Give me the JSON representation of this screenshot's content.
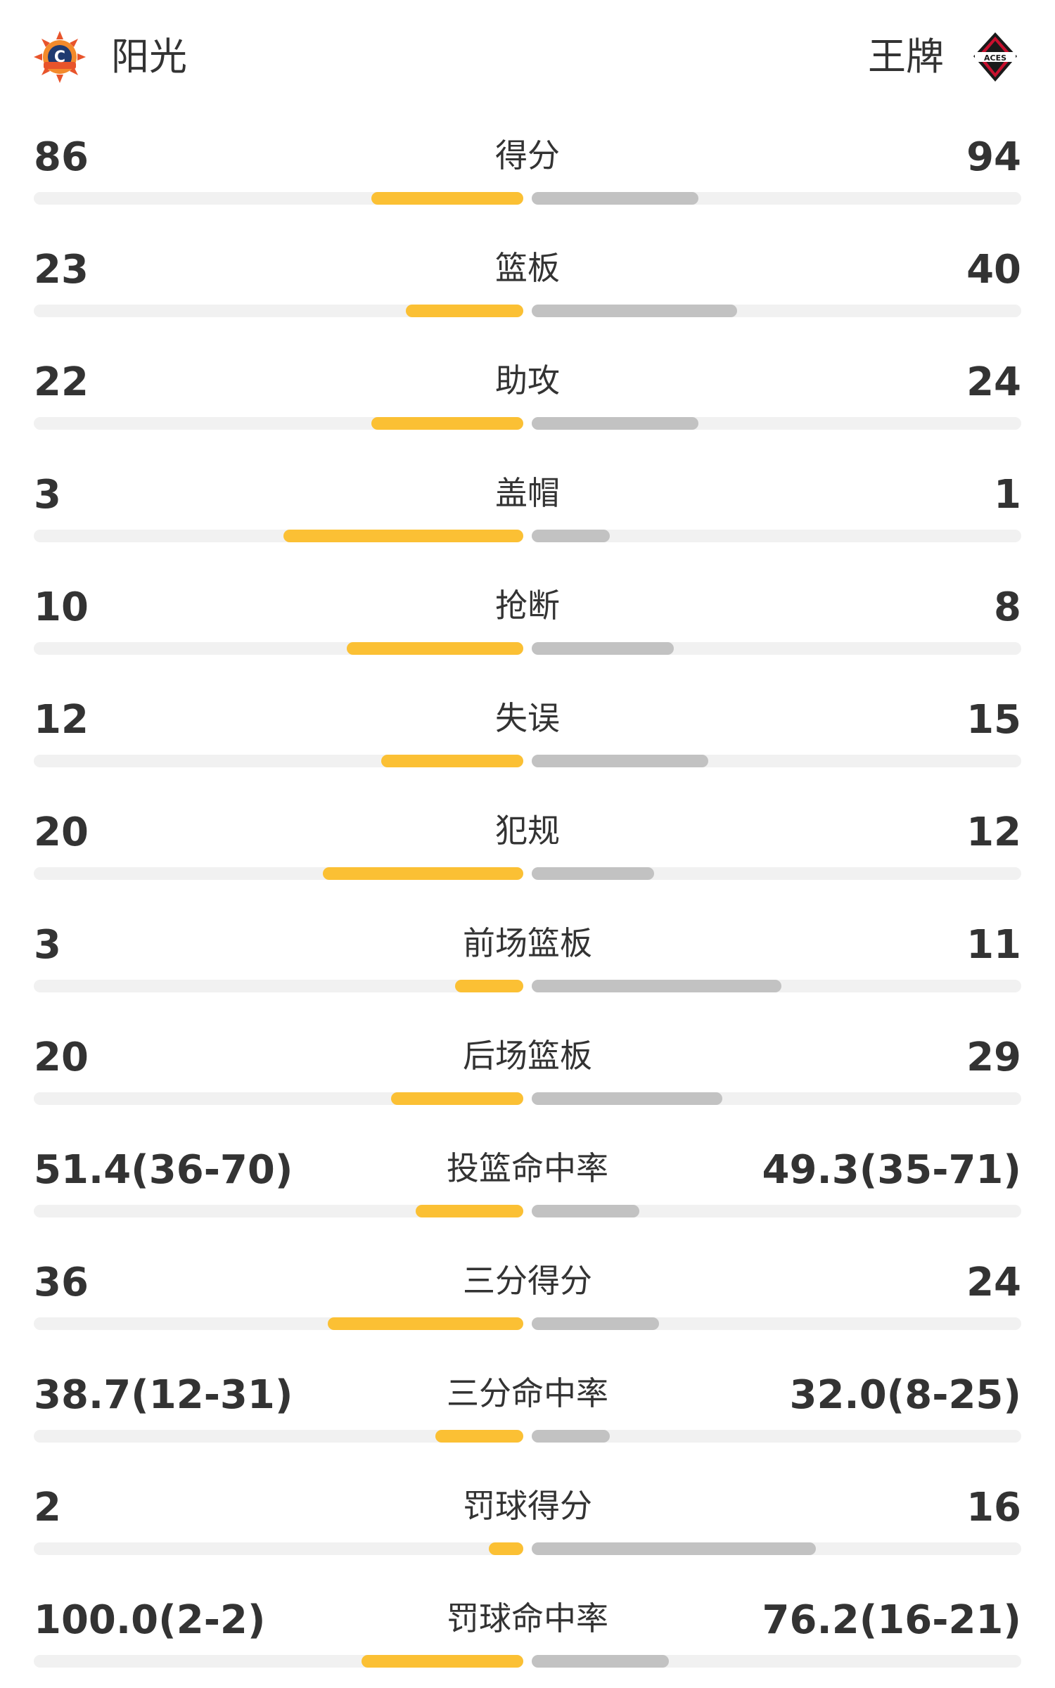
{
  "header": {
    "home_team": "阳光",
    "away_team": "王牌",
    "home_logo_icon": "connecticut-sun-logo-icon",
    "away_logo_icon": "las-vegas-aces-logo-icon",
    "home_logo_text": "C",
    "away_logo_text": "ACES"
  },
  "colors": {
    "home_bar": "#fbc034",
    "away_bar": "#c2c2c2",
    "track": "#f1f1f1"
  },
  "stats": [
    {
      "label": "得分",
      "home": "86",
      "away": "94",
      "home_fill": 0.31,
      "away_fill": 0.34
    },
    {
      "label": "篮板",
      "home": "23",
      "away": "40",
      "home_fill": 0.24,
      "away_fill": 0.42
    },
    {
      "label": "助攻",
      "home": "22",
      "away": "24",
      "home_fill": 0.31,
      "away_fill": 0.34
    },
    {
      "label": "盖帽",
      "home": "3",
      "away": "1",
      "home_fill": 0.49,
      "away_fill": 0.16
    },
    {
      "label": "抢断",
      "home": "10",
      "away": "8",
      "home_fill": 0.36,
      "away_fill": 0.29
    },
    {
      "label": "失误",
      "home": "12",
      "away": "15",
      "home_fill": 0.29,
      "away_fill": 0.36
    },
    {
      "label": "犯规",
      "home": "20",
      "away": "12",
      "home_fill": 0.41,
      "away_fill": 0.25
    },
    {
      "label": "前场篮板",
      "home": "3",
      "away": "11",
      "home_fill": 0.14,
      "away_fill": 0.51
    },
    {
      "label": "后场篮板",
      "home": "20",
      "away": "29",
      "home_fill": 0.27,
      "away_fill": 0.39
    },
    {
      "label": "投篮命中率",
      "home": "51.4(36-70)",
      "away": "49.3(35-71)",
      "home_fill": 0.22,
      "away_fill": 0.22
    },
    {
      "label": "三分得分",
      "home": "36",
      "away": "24",
      "home_fill": 0.4,
      "away_fill": 0.26
    },
    {
      "label": "三分命中率",
      "home": "38.7(12-31)",
      "away": "32.0(8-25)",
      "home_fill": 0.18,
      "away_fill": 0.16
    },
    {
      "label": "罚球得分",
      "home": "2",
      "away": "16",
      "home_fill": 0.07,
      "away_fill": 0.58
    },
    {
      "label": "罚球命中率",
      "home": "100.0(2-2)",
      "away": "76.2(16-21)",
      "home_fill": 0.33,
      "away_fill": 0.28
    }
  ]
}
